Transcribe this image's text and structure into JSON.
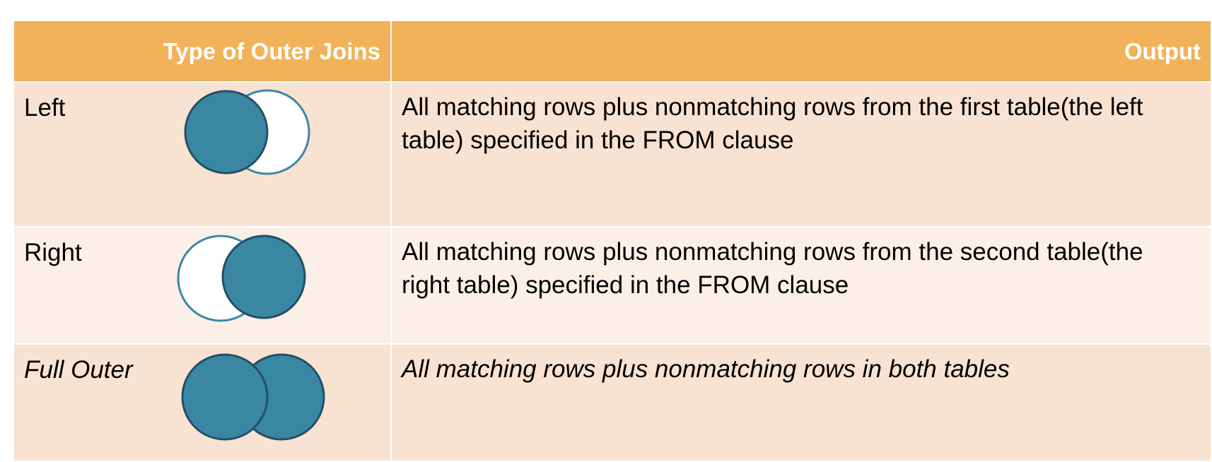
{
  "table": {
    "header": {
      "type_col": "Type of Outer Joins",
      "output_col": "Output"
    },
    "rows": [
      {
        "type": "Left",
        "output": "All matching rows plus nonmatching rows from the first table(the left table) specified in the FROM clause",
        "diagram": "left-join-venn-icon",
        "italic": false
      },
      {
        "type": "Right",
        "output": "All matching rows plus nonmatching rows from the second table(the right table) specified in the FROM clause",
        "diagram": "right-join-venn-icon",
        "italic": false
      },
      {
        "type": "Full Outer",
        "output": "All matching rows plus nonmatching rows in both tables",
        "diagram": "full-outer-join-venn-icon",
        "italic": true
      }
    ]
  },
  "colors": {
    "header_bg": "#f2b25a",
    "row_odd_bg": "#f8e2d1",
    "row_even_bg": "#fcefe7",
    "venn_fill": "#3a87a3",
    "venn_stroke": "#244f66",
    "venn_outline_light": "#3a87a3"
  }
}
